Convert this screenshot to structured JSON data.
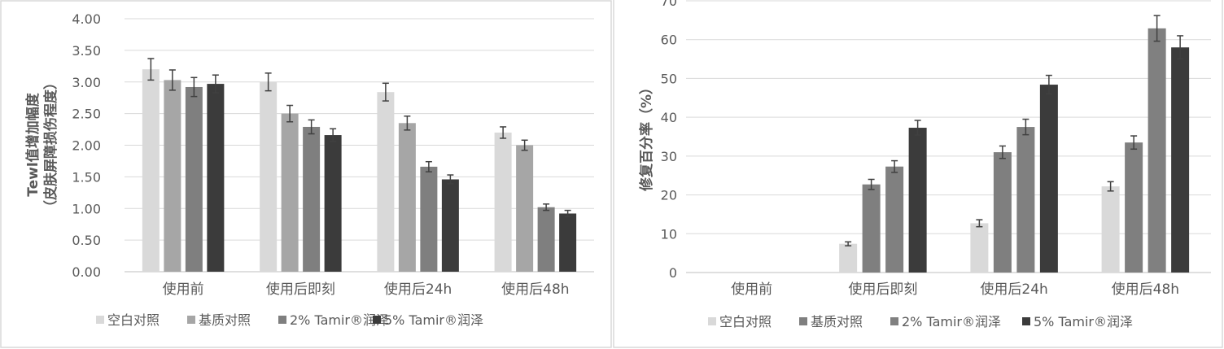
{
  "charts": [
    {
      "chart_data": {
        "type": "bar",
        "title": "",
        "xlabel": "",
        "ylabel": "Tewl值增加幅度",
        "ylabel2": "（皮肤屏障损伤程度）",
        "ylim": [
          0,
          4
        ],
        "yticks": [
          "4.00",
          "3.50",
          "3.00",
          "2.50",
          "2.00",
          "1.50",
          "1.00",
          "0.50",
          "0.00"
        ],
        "categories": [
          "使用前",
          "使用后即刻",
          "使用后24h",
          "使用后48h"
        ],
        "series": [
          {
            "name": "空白对照",
            "color": "#d9d9d9",
            "values": [
              3.2,
              3.0,
              2.84,
              2.2
            ],
            "errors": [
              0.17,
              0.14,
              0.14,
              0.09
            ]
          },
          {
            "name": "基质对照",
            "color": "#a6a6a6",
            "values": [
              3.03,
              2.5,
              2.35,
              2.0
            ],
            "errors": [
              0.16,
              0.13,
              0.11,
              0.08
            ]
          },
          {
            "name": "2% Tamir®润泽",
            "color": "#7f7f7f",
            "values": [
              2.92,
              2.29,
              1.66,
              1.02
            ],
            "errors": [
              0.15,
              0.11,
              0.08,
              0.05
            ]
          },
          {
            "name": "5% Tamir®润泽",
            "color": "#3b3b3b",
            "values": [
              2.97,
              2.16,
              1.46,
              0.92
            ],
            "errors": [
              0.14,
              0.1,
              0.07,
              0.05
            ]
          }
        ],
        "grid": true,
        "legend": "bottom"
      }
    },
    {
      "chart_data": {
        "type": "bar",
        "title": "",
        "xlabel": "",
        "ylabel": "修复百分率（%）",
        "ylim": [
          0,
          70
        ],
        "yticks": [
          "70",
          "60",
          "50",
          "40",
          "30",
          "20",
          "10",
          "0"
        ],
        "categories": [
          "使用前",
          "使用后即刻",
          "使用后24h",
          "使用后48h"
        ],
        "series": [
          {
            "name": "空白对照",
            "color": "#d9d9d9",
            "values": [
              0,
              7.4,
              12.7,
              22.2
            ],
            "errors": [
              0,
              0.5,
              0.9,
              1.2
            ]
          },
          {
            "name": "基质对照",
            "color": "#7f7f7f",
            "values": [
              0,
              22.7,
              31.0,
              33.5
            ],
            "errors": [
              0,
              1.3,
              1.6,
              1.7
            ]
          },
          {
            "name": "2% Tamir®润泽",
            "color": "#808080",
            "values": [
              0,
              27.3,
              37.5,
              62.9
            ],
            "errors": [
              0,
              1.5,
              2.0,
              3.3
            ]
          },
          {
            "name": "5% Tamir®润泽",
            "color": "#3b3b3b",
            "values": [
              0,
              37.3,
              48.4,
              58.0
            ],
            "errors": [
              0,
              1.9,
              2.4,
              3.0
            ]
          }
        ],
        "grid": true,
        "legend": "bottom"
      }
    }
  ]
}
